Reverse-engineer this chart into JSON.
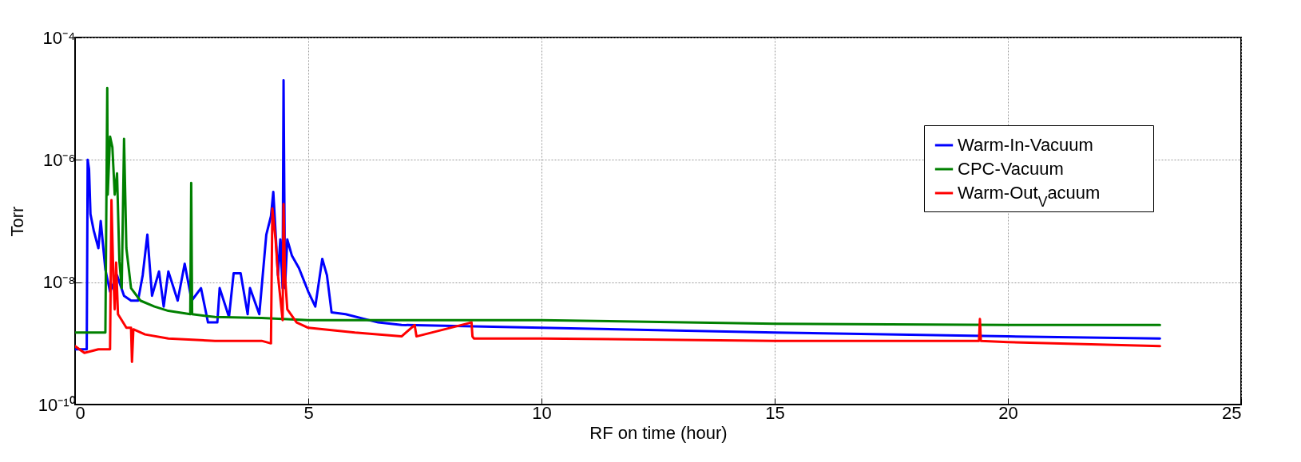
{
  "chart_data": {
    "type": "line",
    "xlabel": "RF on time (hour)",
    "ylabel": "Torr",
    "log": "y",
    "xlim": [
      0,
      25
    ],
    "xticks": [
      0,
      5,
      10,
      15,
      20,
      25
    ],
    "ylim": [
      1e-10,
      0.0001
    ],
    "yticks": [
      {
        "value": 1e-10,
        "label": "10⁻¹⁰"
      },
      {
        "value": 1e-08,
        "label": "10⁻⁸"
      },
      {
        "value": 1e-06,
        "label": "10⁻⁶"
      },
      {
        "value": 0.0001,
        "label": "10⁻⁴"
      }
    ],
    "grid": true,
    "legend": "top right",
    "marker": "none",
    "line_style": "solid",
    "series": [
      {
        "name": "Warm-In-Vacuum",
        "color": "#0000ff",
        "x": [
          0,
          0.25,
          0.27,
          0.3,
          0.33,
          0.4,
          0.5,
          0.55,
          0.65,
          0.75,
          0.9,
          1.05,
          1.2,
          1.35,
          1.45,
          1.55,
          1.65,
          1.8,
          1.9,
          2.0,
          2.2,
          2.35,
          2.5,
          2.7,
          2.85,
          3.05,
          3.1,
          3.3,
          3.4,
          3.55,
          3.7,
          3.75,
          3.95,
          4.1,
          4.2,
          4.25,
          4.35,
          4.4,
          4.45,
          4.47,
          4.5,
          4.55,
          4.65,
          4.8,
          5.0,
          5.15,
          5.3,
          5.4,
          5.5,
          5.8,
          6.5,
          7.0,
          10,
          15,
          20,
          23.26
        ],
        "values": [
          8e-10,
          8e-10,
          1e-06,
          7e-07,
          1.3e-07,
          7e-08,
          3.6e-08,
          1e-07,
          1.6e-08,
          7e-09,
          1.3e-08,
          6e-09,
          5e-09,
          5e-09,
          1.3e-08,
          6e-08,
          6e-09,
          1.5e-08,
          4e-09,
          1.5e-08,
          5e-09,
          2e-08,
          5e-09,
          8e-09,
          2.2e-09,
          2.2e-09,
          8e-09,
          2.7e-09,
          1.4e-08,
          1.4e-08,
          3e-09,
          8e-09,
          3e-09,
          6e-08,
          1.2e-07,
          3e-07,
          1.3e-08,
          5e-08,
          8e-09,
          2e-05,
          8e-09,
          5e-08,
          2.7e-08,
          1.7e-08,
          7e-09,
          4e-09,
          2.4e-08,
          1.3e-08,
          3.2e-09,
          3e-09,
          2.2e-09,
          2e-09,
          1.8e-09,
          1.5e-09,
          1.3e-09,
          1.2e-09
        ]
      },
      {
        "name": "CPC-Vacuum",
        "color": "#008000",
        "x": [
          0,
          0.65,
          0.69,
          0.7,
          0.75,
          0.8,
          0.85,
          0.9,
          0.95,
          1.0,
          1.05,
          1.1,
          1.2,
          1.4,
          1.7,
          2.0,
          2.47,
          2.49,
          2.51,
          3.0,
          4.0,
          5.0,
          6.0,
          10,
          15,
          20,
          23.26
        ],
        "values": [
          1.5e-09,
          1.5e-09,
          1.5e-05,
          2.7e-07,
          2.4e-06,
          1.6e-06,
          2.7e-07,
          6e-07,
          2.2e-08,
          8e-09,
          2.2e-06,
          3.6e-08,
          8e-09,
          5e-09,
          4e-09,
          3.4e-09,
          3e-09,
          4.2e-07,
          3e-09,
          2.7e-09,
          2.6e-09,
          2.4e-09,
          2.4e-09,
          2.4e-09,
          2.1e-09,
          2e-09,
          2e-09
        ]
      },
      {
        "name": "Warm-Out$_{V}$acuum",
        "color": "#ff0000",
        "x": [
          0,
          0.2,
          0.5,
          0.75,
          0.78,
          0.82,
          0.85,
          0.88,
          0.92,
          1.0,
          1.1,
          1.2,
          1.22,
          1.25,
          1.5,
          2.0,
          3.0,
          4.0,
          4.2,
          4.23,
          4.3,
          4.35,
          4.45,
          4.47,
          4.5,
          4.55,
          4.75,
          5.0,
          6.0,
          7.0,
          7.28,
          7.32,
          8.5,
          8.52,
          8.55,
          10,
          15,
          19.38,
          19.4,
          19.42,
          20,
          23.26
        ],
        "values": [
          9e-10,
          7e-10,
          8e-10,
          8e-10,
          2.2e-07,
          1.3e-08,
          3.6e-09,
          2.1e-08,
          3e-09,
          2.4e-09,
          1.8e-09,
          1.8e-09,
          5e-10,
          1.7e-09,
          1.4e-09,
          1.2e-09,
          1.1e-09,
          1.1e-09,
          1e-09,
          1.6e-07,
          4.9e-08,
          1.3e-08,
          2.4e-09,
          1.9e-07,
          1.3e-08,
          3.6e-09,
          2.2e-09,
          1.8e-09,
          1.5e-09,
          1.3e-09,
          2e-09,
          1.3e-09,
          2.2e-09,
          1.3e-09,
          1.2e-09,
          1.2e-09,
          1.1e-09,
          1.1e-09,
          2.5e-09,
          1.1e-09,
          1.05e-09,
          9e-10
        ]
      }
    ]
  }
}
